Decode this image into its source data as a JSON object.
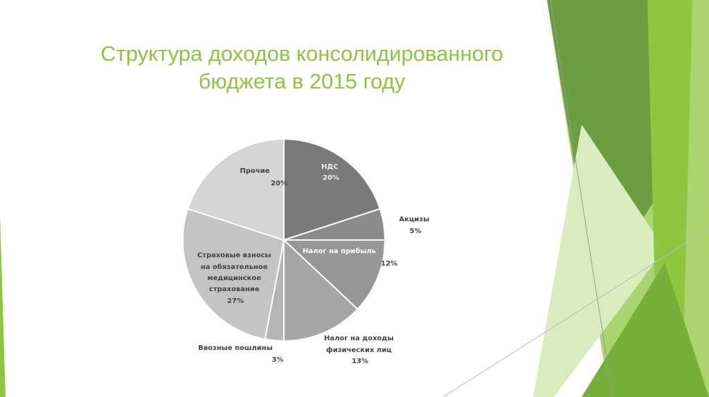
{
  "slide": {
    "title_line1": "Структура доходов консолидированного",
    "title_line2": "бюджета в 2015 году",
    "colors": {
      "title": "#8cc63e",
      "accent_dark": "#6a9e3c",
      "accent_light": "#8dc63f"
    }
  },
  "chart_data": {
    "type": "pie",
    "title": "",
    "slices": [
      {
        "label": "НДС",
        "value": 20,
        "value_label": "20%",
        "color": "#7a7a7a"
      },
      {
        "label": "Акцизы",
        "value": 5,
        "value_label": "5%",
        "color": "#8c8c8c"
      },
      {
        "label": "Налог на прибыль",
        "value": 12,
        "value_label": "12%",
        "color": "#979797"
      },
      {
        "label": "Налог на доходы физических лиц",
        "value": 13,
        "value_label": "13%",
        "color": "#a6a6a6"
      },
      {
        "label": "Ввозные пошлины",
        "value": 3,
        "value_label": "3%",
        "color": "#b5b5b5"
      },
      {
        "label": "Страховые взносы на обязательное медицинское страхование",
        "value": 27,
        "value_label": "27%",
        "color": "#c4c4c4"
      },
      {
        "label": "Прочие",
        "value": 20,
        "value_label": "20%",
        "color": "#d4d4d4"
      }
    ]
  }
}
